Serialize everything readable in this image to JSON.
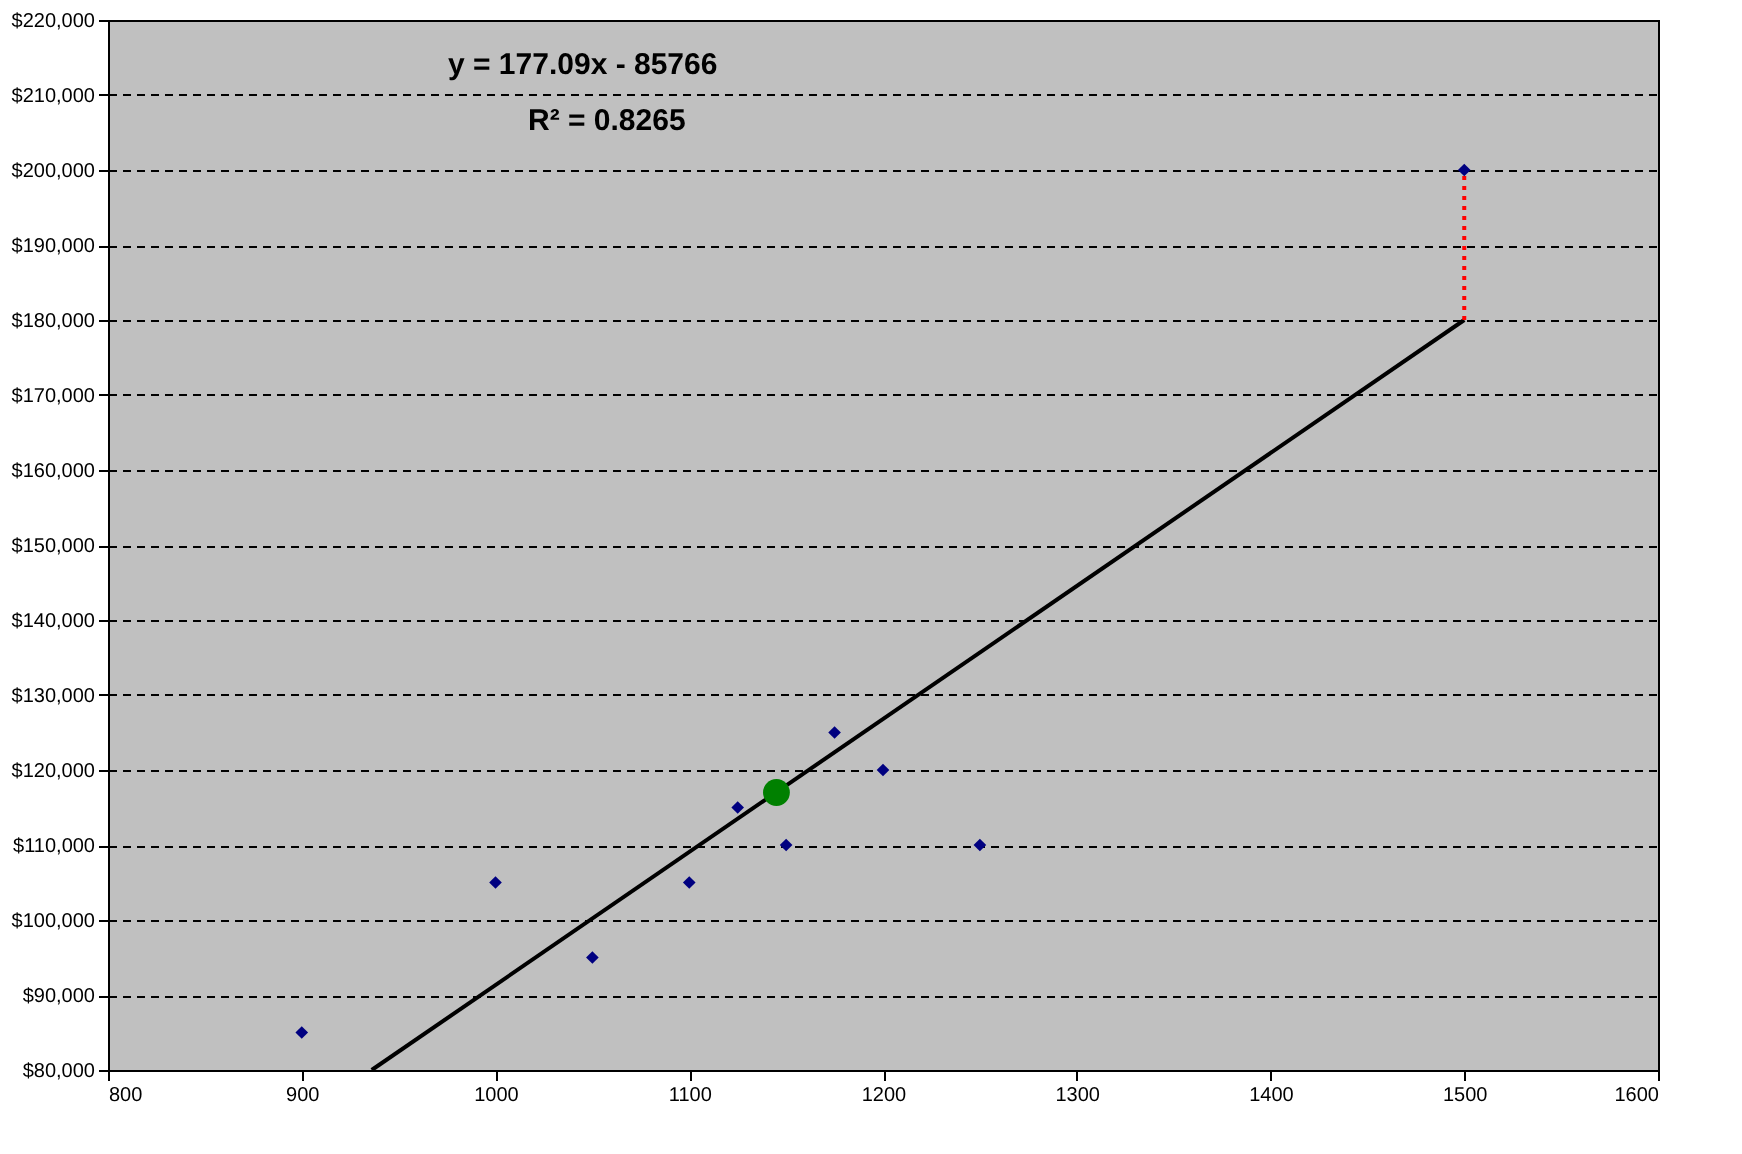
{
  "chart_data": {
    "type": "scatter",
    "annotations": [
      "y = 177.09x - 85766",
      "R² = 0.8265"
    ],
    "xlim": [
      800,
      1600
    ],
    "xticks": [
      800,
      900,
      1000,
      1100,
      1200,
      1300,
      1400,
      1500,
      1600
    ],
    "ylim": [
      80000,
      220000
    ],
    "yticks": [
      {
        "value": 80000,
        "label": "$80,000"
      },
      {
        "value": 90000,
        "label": "$90,000"
      },
      {
        "value": 100000,
        "label": "$100,000"
      },
      {
        "value": 110000,
        "label": "$110,000"
      },
      {
        "value": 120000,
        "label": "$120,000"
      },
      {
        "value": 130000,
        "label": "$130,000"
      },
      {
        "value": 140000,
        "label": "$140,000"
      },
      {
        "value": 150000,
        "label": "$150,000"
      },
      {
        "value": 160000,
        "label": "$160,000"
      },
      {
        "value": 170000,
        "label": "$170,000"
      },
      {
        "value": 180000,
        "label": "$180,000"
      },
      {
        "value": 190000,
        "label": "$190,000"
      },
      {
        "value": 200000,
        "label": "$200,000"
      },
      {
        "value": 210000,
        "label": "$210,000"
      },
      {
        "value": 220000,
        "label": "$220,000"
      }
    ],
    "grid": "y",
    "series": [
      {
        "type": "line",
        "color": "#000000",
        "line_style": "solid",
        "marker": "none",
        "x": [
          936.1,
          1500
        ],
        "values": [
          80000,
          180000
        ]
      },
      {
        "type": "line",
        "color": "#ff0000",
        "line_style": "dotted",
        "marker": "none",
        "x": [
          1500,
          1500
        ],
        "values": [
          180000,
          200000
        ]
      },
      {
        "color": "#000080",
        "marker": "diamond",
        "x": [
          900,
          1000,
          1050,
          1100,
          1125,
          1150,
          1175,
          1200,
          1250,
          1500
        ],
        "values": [
          85000,
          105000,
          95000,
          105000,
          115000,
          110000,
          125000,
          120000,
          110000,
          200000
        ]
      },
      {
        "color": "#008000",
        "marker": "circle",
        "x": [
          1145
        ],
        "values": [
          117000
        ]
      }
    ]
  }
}
